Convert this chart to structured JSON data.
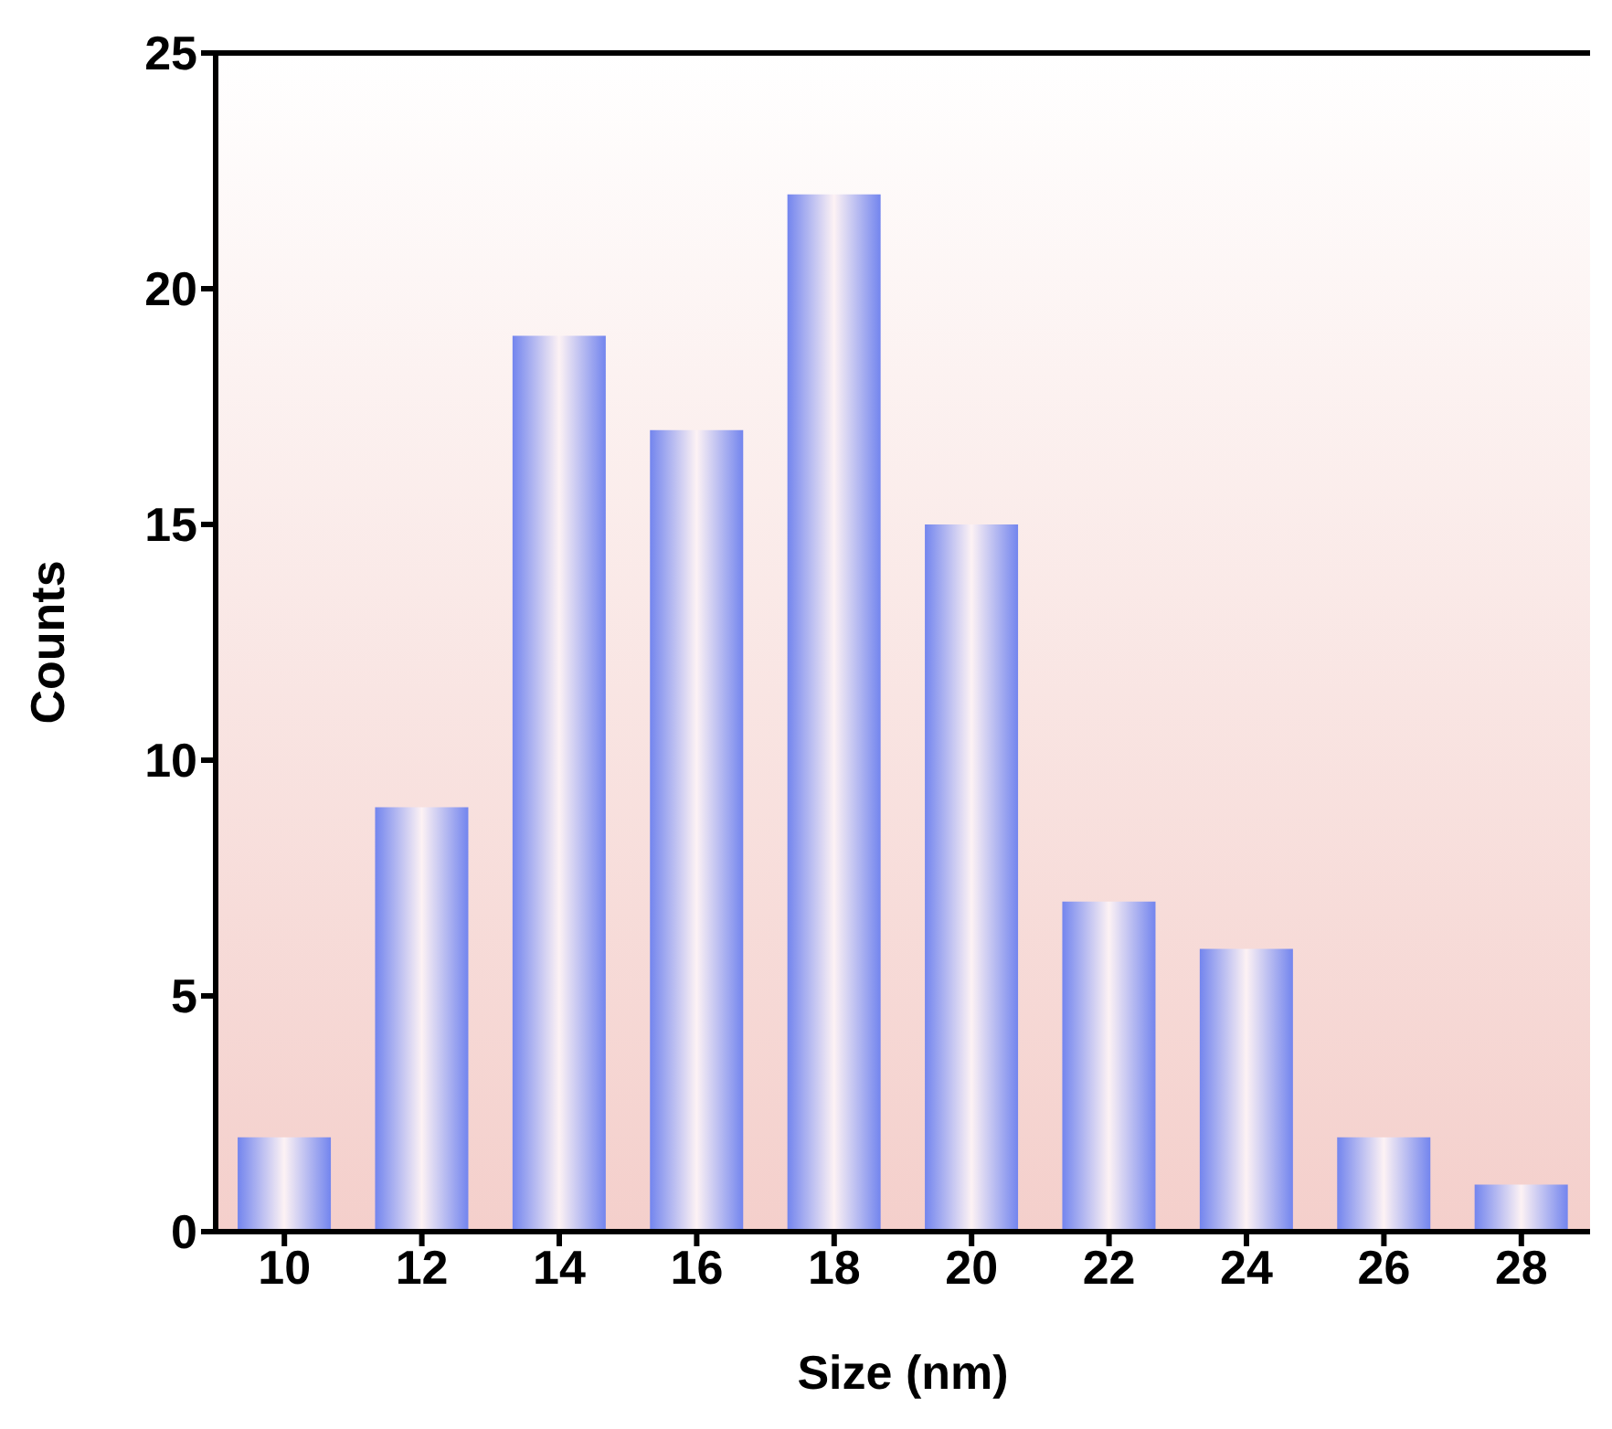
{
  "chart_data": {
    "type": "bar",
    "xlabel": "Size (nm)",
    "ylabel": "Counts",
    "categories": [
      "10",
      "12",
      "14",
      "16",
      "18",
      "20",
      "22",
      "24",
      "26",
      "28"
    ],
    "values": [
      2,
      9,
      19,
      17,
      22,
      15,
      7,
      6,
      2,
      1
    ],
    "color": "#7385ee",
    "ylim": [
      0,
      25
    ],
    "yticks": [
      0,
      5,
      10,
      15,
      20,
      25
    ]
  }
}
